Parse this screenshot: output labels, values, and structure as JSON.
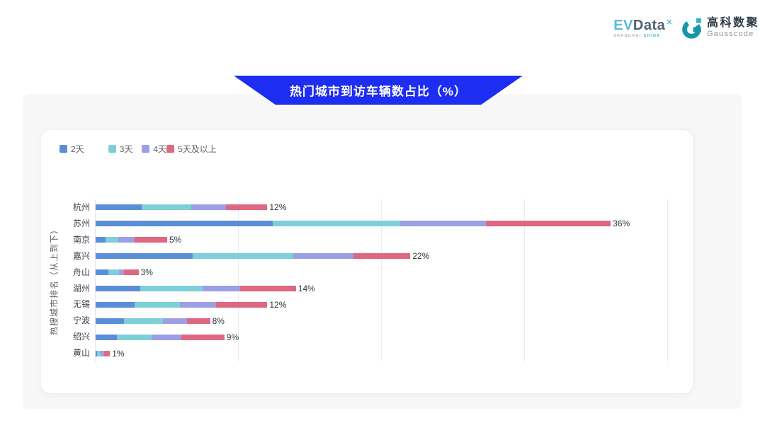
{
  "header": {
    "evdata": {
      "ev": "EV",
      "data": "Data",
      "sup": "✕",
      "sub_left": "SHANGHAI",
      "sub_right": "CHINA"
    },
    "gausscode": {
      "cn": "高科数聚",
      "en": "Gausscode",
      "mark_color": "#1795ab"
    }
  },
  "banner": {
    "title": "热门城市到访车辆数占比（%）",
    "color": "#1d2df2"
  },
  "chart_data": {
    "type": "bar",
    "orientation": "horizontal",
    "stacked": true,
    "title": "热门城市到访车辆数占比（%）",
    "ylabel": "热搜城市排名（从上到下）",
    "xlabel": "",
    "xlim": [
      0,
      40
    ],
    "grid": true,
    "gridline_values": [
      0,
      10,
      20,
      30,
      40
    ],
    "legend_position": "top-left",
    "categories": [
      "杭州",
      "苏州",
      "南京",
      "嘉兴",
      "舟山",
      "湖州",
      "无锡",
      "宁波",
      "绍兴",
      "黄山"
    ],
    "totals": [
      12,
      36,
      5,
      22,
      3,
      14,
      12,
      8,
      9,
      1
    ],
    "total_labels": [
      "12%",
      "36%",
      "5%",
      "22%",
      "3%",
      "14%",
      "12%",
      "8%",
      "9%",
      "1%"
    ],
    "series": [
      {
        "name": "2天",
        "color": "#5b8ed8",
        "values": [
          3.2,
          12.4,
          0.7,
          6.8,
          0.9,
          3.1,
          2.7,
          2.0,
          1.5,
          0.1
        ]
      },
      {
        "name": "3天",
        "color": "#7ed0d8",
        "values": [
          3.5,
          8.9,
          0.9,
          7.0,
          0.75,
          4.4,
          3.2,
          2.7,
          2.4,
          0.25
        ]
      },
      {
        "name": "4天",
        "color": "#9c9ee6",
        "values": [
          2.4,
          6.0,
          1.1,
          4.2,
          0.35,
          2.6,
          2.5,
          1.7,
          2.1,
          0.25
        ]
      },
      {
        "name": "5天及以上",
        "color": "#dd6880",
        "values": [
          2.9,
          8.7,
          2.3,
          4.0,
          1.0,
          3.9,
          3.6,
          1.6,
          3.0,
          0.4
        ]
      }
    ]
  }
}
